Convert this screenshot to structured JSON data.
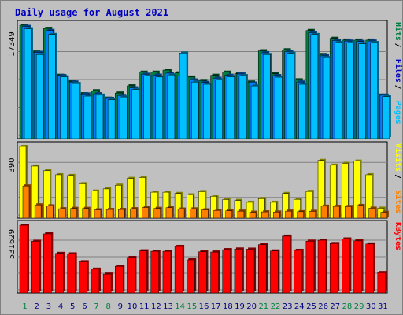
{
  "chart_data": {
    "type": "bar",
    "title": "Daily usage for August 2021",
    "categories": [
      "1",
      "2",
      "3",
      "4",
      "5",
      "6",
      "7",
      "8",
      "9",
      "10",
      "11",
      "12",
      "13",
      "14",
      "15",
      "16",
      "17",
      "18",
      "19",
      "20",
      "21",
      "22",
      "23",
      "24",
      "25",
      "26",
      "27",
      "28",
      "29",
      "30",
      "31"
    ],
    "weekend_days": [
      "1",
      "7",
      "8",
      "14",
      "15",
      "21",
      "22",
      "28",
      "29"
    ],
    "colors": {
      "hits": "#008040",
      "files": "#0080ff",
      "pages": "#00c0ff",
      "visits": "#ffff00",
      "sites": "#ff8000",
      "kbytes": "#ff0000",
      "weekday_label": "#000080",
      "weekend_label": "#008040"
    },
    "panels": [
      {
        "ylabel_max": "17349",
        "ymax": 17349,
        "legend": [
          {
            "text": "Hits",
            "color": "#008040"
          },
          {
            "text": "Files",
            "color": "#0000c0"
          },
          {
            "text": "Pages",
            "color": "#00c0ff"
          }
        ],
        "series": [
          {
            "name": "Hits",
            "values": [
              17349,
              13240,
              16860,
              9680,
              8700,
              6860,
              7320,
              6180,
              6970,
              8070,
              10150,
              10150,
              10480,
              10040,
              9410,
              8880,
              9680,
              10150,
              9920,
              8650,
              13430,
              9910,
              13580,
              8990,
              16540,
              12860,
              15340,
              15070,
              15070,
              15070,
              6650
            ]
          },
          {
            "name": "Files",
            "values": [
              17160,
              13190,
              16540,
              9630,
              8650,
              6830,
              6860,
              6150,
              6600,
              7760,
              9830,
              9700,
              10000,
              9600,
              8970,
              8600,
              9220,
              9680,
              9870,
              8490,
              13130,
              9630,
              13300,
              8650,
              16210,
              12650,
              15000,
              14920,
              14860,
              14920,
              6640
            ]
          },
          {
            "name": "Pages",
            "values": [
              16800,
              12860,
              15930,
              9440,
              8420,
              6500,
              6650,
              5930,
              6370,
              7520,
              9550,
              9420,
              9740,
              13100,
              8650,
              8310,
              8990,
              9450,
              9630,
              8060,
              12860,
              9390,
              13060,
              8310,
              15920,
              12390,
              14690,
              14620,
              14500,
              14690,
              6430
            ]
          }
        ]
      },
      {
        "ylabel_max": "390",
        "ymax": 390,
        "legend": [
          {
            "text": "Visits",
            "color": "#ffff00"
          },
          {
            "text": "Sites",
            "color": "#ff8000"
          }
        ],
        "series": [
          {
            "name": "Visits",
            "values": [
              390,
              283,
              258,
              236,
              232,
              187,
              147,
              159,
              179,
              216,
              221,
              141,
              141,
              134,
              126,
              144,
              119,
              101,
              96,
              86,
              106,
              86,
              134,
              102,
              145,
              314,
              288,
              298,
              310,
              236,
              54
            ]
          },
          {
            "name": "Sites",
            "values": [
              175,
              72,
              67,
              51,
              53,
              53,
              45,
              47,
              47,
              51,
              58,
              53,
              57,
              49,
              50,
              45,
              42,
              40,
              38,
              32,
              34,
              33,
              38,
              35,
              37,
              65,
              64,
              63,
              69,
              54,
              32
            ]
          }
        ]
      },
      {
        "ylabel_max": "531629",
        "ymax": 531629,
        "legend": [
          {
            "text": "KBytes",
            "color": "#ff0000"
          }
        ],
        "series": [
          {
            "name": "KBytes",
            "values": [
              531629,
              405600,
              463850,
              310300,
              306200,
              244750,
              186400,
              147600,
              209400,
              278300,
              330200,
              327100,
              327100,
              364800,
              259800,
              323400,
              320900,
              339600,
              344400,
              343400,
              379500,
              329300,
              445600,
              334000,
              406400,
              414200,
              387600,
              423400,
              408700,
              384300,
              159700
            ]
          }
        ]
      }
    ]
  }
}
